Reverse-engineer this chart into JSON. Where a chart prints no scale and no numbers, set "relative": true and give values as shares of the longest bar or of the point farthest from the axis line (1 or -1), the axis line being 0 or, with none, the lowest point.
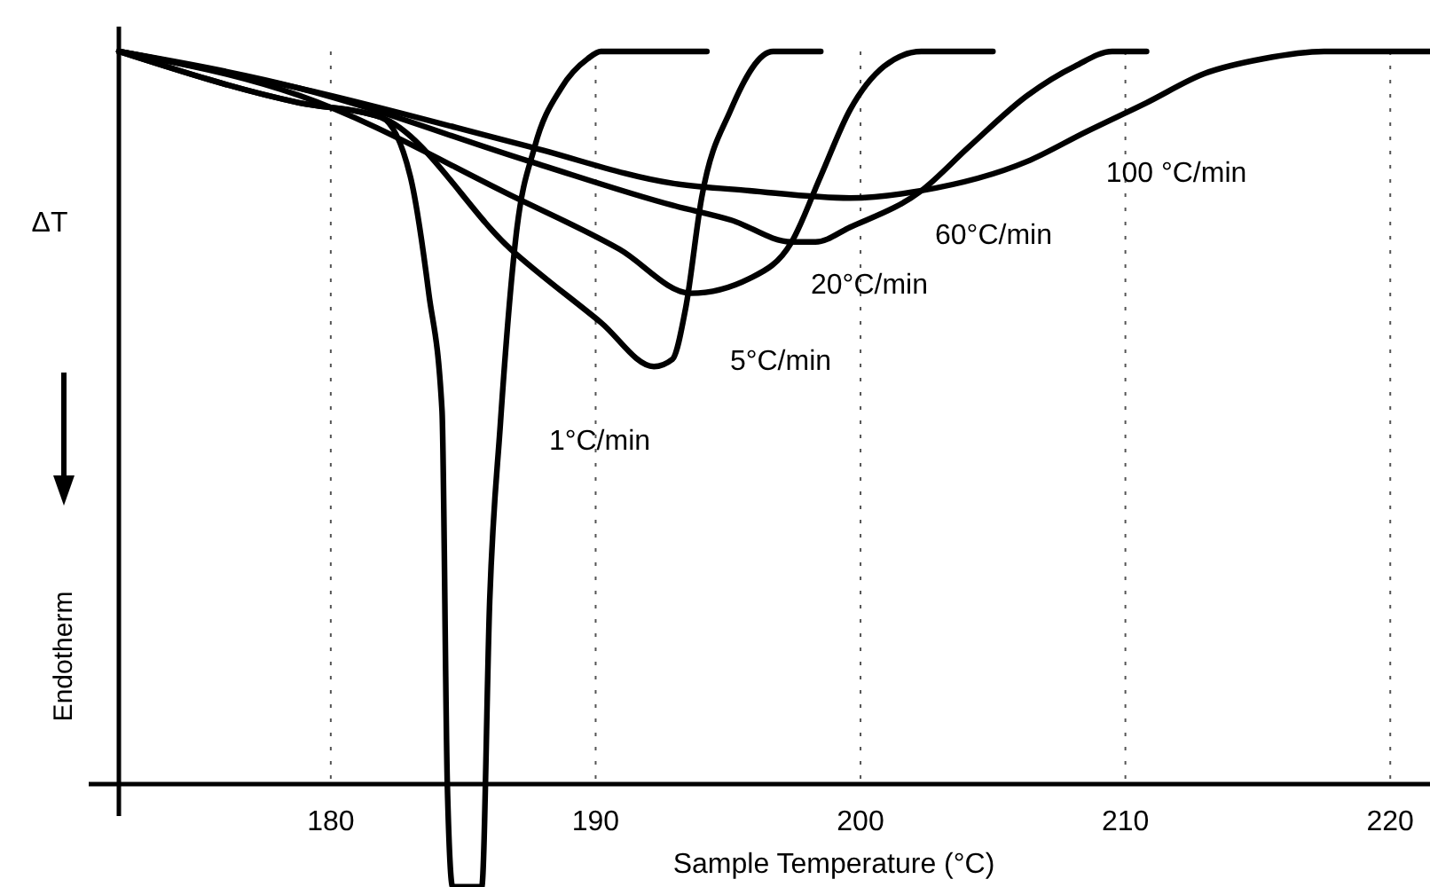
{
  "chart_data": {
    "type": "line",
    "relative": true,
    "xlabel": "Sample Temperature (°C)",
    "ylabel": "ΔT",
    "annotations": [
      "Endotherm"
    ],
    "xlim": [
      172,
      221.5
    ],
    "xticks": [
      180,
      190,
      200,
      210,
      220
    ],
    "grid": "x",
    "legend": false,
    "marker": "none",
    "line_style": "solid",
    "series": [
      {
        "name": "100 °C/min",
        "color": "#000000",
        "x": [
          172,
          178.8,
          187.5,
          192.9,
          195.8,
          199.6,
          202.3,
          206.3,
          208.5,
          210.8,
          213.0,
          215.2,
          217.5,
          220.1,
          221.5
        ],
        "values": [
          1,
          0.95,
          0.87,
          0.82,
          0.81,
          0.8,
          0.81,
          0.85,
          0.89,
          0.93,
          0.97,
          0.99,
          1,
          1,
          1
        ]
      },
      {
        "name": "60°C/min",
        "color": "#000000",
        "x": [
          172,
          178.8,
          187.5,
          192.9,
          195.1,
          197.4,
          198.3,
          199.6,
          202.3,
          204.1,
          206.3,
          208.1,
          209.5,
          210.8
        ],
        "values": [
          1,
          0.95,
          0.85,
          0.79,
          0.77,
          0.74,
          0.74,
          0.76,
          0.81,
          0.87,
          0.94,
          0.98,
          1,
          1
        ]
      },
      {
        "name": "20°C/min",
        "color": "#000000",
        "x": [
          172,
          178.8,
          187.0,
          190.9,
          193.6,
          195.8,
          197.4,
          198.5,
          199.6,
          200.9,
          202.3,
          205.0
        ],
        "values": [
          1,
          0.94,
          0.8,
          0.73,
          0.67,
          0.69,
          0.74,
          0.83,
          0.92,
          0.98,
          1,
          1
        ]
      },
      {
        "name": "5°C/min",
        "color": "#000000",
        "x": [
          172,
          178.8,
          181.9,
          186.8,
          190.2,
          192.2,
          192.9,
          193.4,
          194.0,
          195.1,
          196.7,
          198.5
        ],
        "values": [
          1,
          0.93,
          0.91,
          0.73,
          0.63,
          0.57,
          0.58,
          0.65,
          0.8,
          0.92,
          1,
          1
        ]
      },
      {
        "name": "1°C/min",
        "color": "#000000",
        "x": [
          172,
          178.8,
          181.9,
          183.0,
          183.7,
          184.2,
          184.4,
          184.6,
          185.7,
          186.0,
          186.4,
          187.0,
          187.7,
          188.7,
          189.7,
          190.2,
          194.2
        ],
        "values": [
          1,
          0.93,
          0.91,
          0.83,
          0.67,
          0.51,
          0.0,
          -0.14,
          -0.14,
          0.25,
          0.49,
          0.75,
          0.87,
          0.95,
          0.99,
          1,
          1
        ]
      }
    ]
  }
}
